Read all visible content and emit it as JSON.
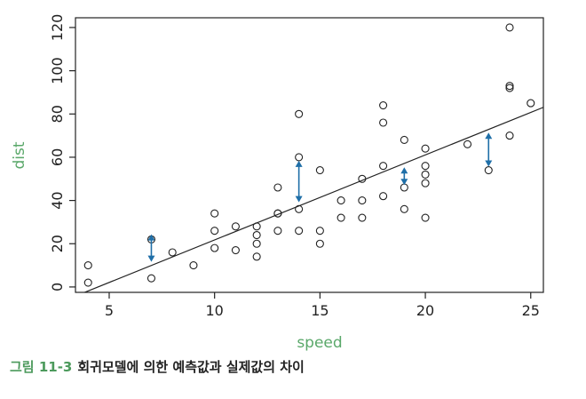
{
  "caption": {
    "label": "그림 11-3",
    "text": "회귀모델에 의한 예측값과 실제값의 차이"
  },
  "chart_data": {
    "type": "scatter",
    "title": "",
    "xlabel": "speed",
    "ylabel": "dist",
    "xlim": [
      3.4,
      25.6
    ],
    "ylim": [
      -2.5,
      124.5
    ],
    "xticks": [
      5,
      10,
      15,
      20,
      25
    ],
    "yticks": [
      0,
      20,
      40,
      60,
      80,
      100,
      120
    ],
    "grid": false,
    "points": [
      {
        "x": 4,
        "y": 2
      },
      {
        "x": 4,
        "y": 10
      },
      {
        "x": 7,
        "y": 4
      },
      {
        "x": 7,
        "y": 22
      },
      {
        "x": 8,
        "y": 16
      },
      {
        "x": 9,
        "y": 10
      },
      {
        "x": 10,
        "y": 18
      },
      {
        "x": 10,
        "y": 26
      },
      {
        "x": 10,
        "y": 34
      },
      {
        "x": 11,
        "y": 17
      },
      {
        "x": 11,
        "y": 28
      },
      {
        "x": 12,
        "y": 14
      },
      {
        "x": 12,
        "y": 20
      },
      {
        "x": 12,
        "y": 24
      },
      {
        "x": 12,
        "y": 28
      },
      {
        "x": 13,
        "y": 26
      },
      {
        "x": 13,
        "y": 34
      },
      {
        "x": 13,
        "y": 34
      },
      {
        "x": 13,
        "y": 46
      },
      {
        "x": 14,
        "y": 26
      },
      {
        "x": 14,
        "y": 36
      },
      {
        "x": 14,
        "y": 60
      },
      {
        "x": 14,
        "y": 80
      },
      {
        "x": 15,
        "y": 20
      },
      {
        "x": 15,
        "y": 26
      },
      {
        "x": 15,
        "y": 54
      },
      {
        "x": 16,
        "y": 32
      },
      {
        "x": 16,
        "y": 40
      },
      {
        "x": 17,
        "y": 32
      },
      {
        "x": 17,
        "y": 40
      },
      {
        "x": 17,
        "y": 50
      },
      {
        "x": 18,
        "y": 42
      },
      {
        "x": 18,
        "y": 56
      },
      {
        "x": 18,
        "y": 76
      },
      {
        "x": 18,
        "y": 84
      },
      {
        "x": 19,
        "y": 36
      },
      {
        "x": 19,
        "y": 46
      },
      {
        "x": 19,
        "y": 68
      },
      {
        "x": 20,
        "y": 32
      },
      {
        "x": 20,
        "y": 48
      },
      {
        "x": 20,
        "y": 52
      },
      {
        "x": 20,
        "y": 56
      },
      {
        "x": 20,
        "y": 64
      },
      {
        "x": 22,
        "y": 66
      },
      {
        "x": 23,
        "y": 54
      },
      {
        "x": 24,
        "y": 70
      },
      {
        "x": 24,
        "y": 92
      },
      {
        "x": 24,
        "y": 93
      },
      {
        "x": 24,
        "y": 120
      },
      {
        "x": 25,
        "y": 85
      }
    ],
    "regression_line": {
      "intercept": -17.579,
      "slope": 3.932
    },
    "residual_arrows": [
      {
        "x": 7,
        "from": 26,
        "to": 10.0
      },
      {
        "x": 14,
        "from": 60,
        "to": 37.5
      },
      {
        "x": 19,
        "from": 57,
        "to": 45.5
      },
      {
        "x": 23,
        "from": 54,
        "to": 73
      }
    ],
    "colors": {
      "points": "#222222",
      "line": "#222222",
      "arrows": "#1f6fa8",
      "axis_title": "#5aa86a"
    }
  }
}
